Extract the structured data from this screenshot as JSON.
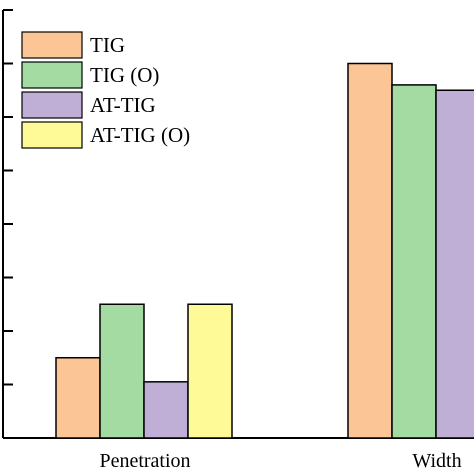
{
  "chart_data": {
    "type": "bar",
    "title": "",
    "xlabel": "",
    "ylabel": "",
    "categories": [
      "Penetration",
      "Width"
    ],
    "series": [
      {
        "name": "TIG",
        "color": "#fcc595",
        "values": [
          1.5,
          7.0
        ]
      },
      {
        "name": "TIG (O)",
        "color": "#a3dba3",
        "values": [
          2.5,
          6.6
        ]
      },
      {
        "name": "AT-TIG",
        "color": "#bfaed6",
        "values": [
          1.05,
          6.5
        ]
      },
      {
        "name": "AT-TIG (O)",
        "color": "#fdfa97",
        "values": [
          2.5,
          null
        ]
      }
    ],
    "ylim": [
      0,
      8
    ],
    "grid": false,
    "legend_position": "top-left",
    "bar_edge_color": "#000000"
  }
}
